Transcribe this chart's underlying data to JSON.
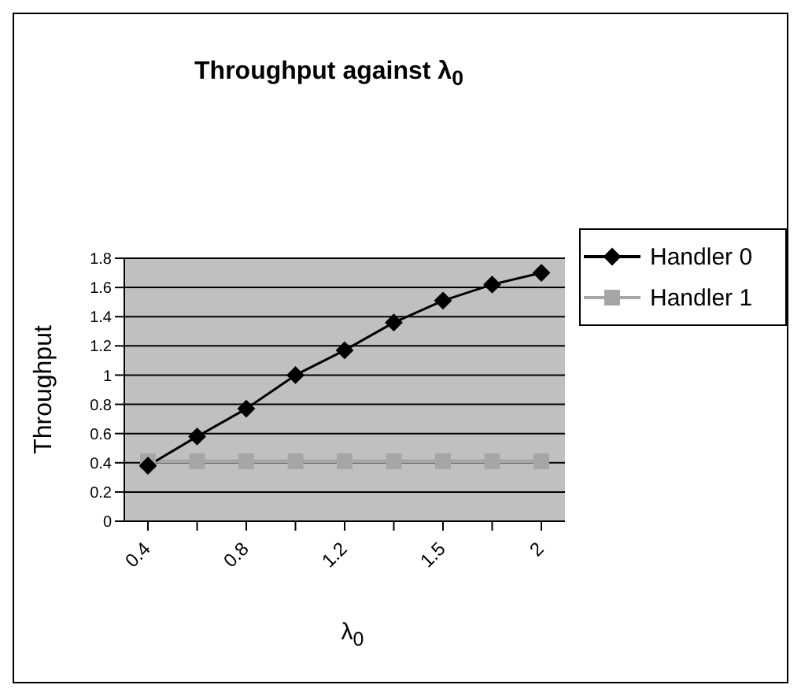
{
  "chart_data": {
    "type": "line",
    "title": "Throughput against λ$_{0}$",
    "xlabel": "λ$_{0}$",
    "ylabel": "Throughput",
    "categories": [
      "0.4",
      null,
      "0.8",
      null,
      "1.2",
      null,
      "1.5",
      null,
      "2"
    ],
    "series": [
      {
        "name": "Handler 0",
        "color": "#000000",
        "marker": "diamond",
        "values": [
          0.38,
          0.58,
          0.77,
          1.0,
          1.17,
          1.36,
          1.51,
          1.62,
          1.7
        ]
      },
      {
        "name": "Handler 1",
        "color": "#a6a6a6",
        "marker": "square",
        "values": [
          0.41,
          0.41,
          0.41,
          0.41,
          0.41,
          0.41,
          0.41,
          0.41,
          0.41
        ]
      }
    ],
    "ylim": [
      0,
      1.8
    ],
    "yticks": [
      0,
      0.2,
      0.4,
      0.6,
      0.8,
      1,
      1.2,
      1.4,
      1.6,
      1.8
    ],
    "grid": "y",
    "legend": "right"
  }
}
